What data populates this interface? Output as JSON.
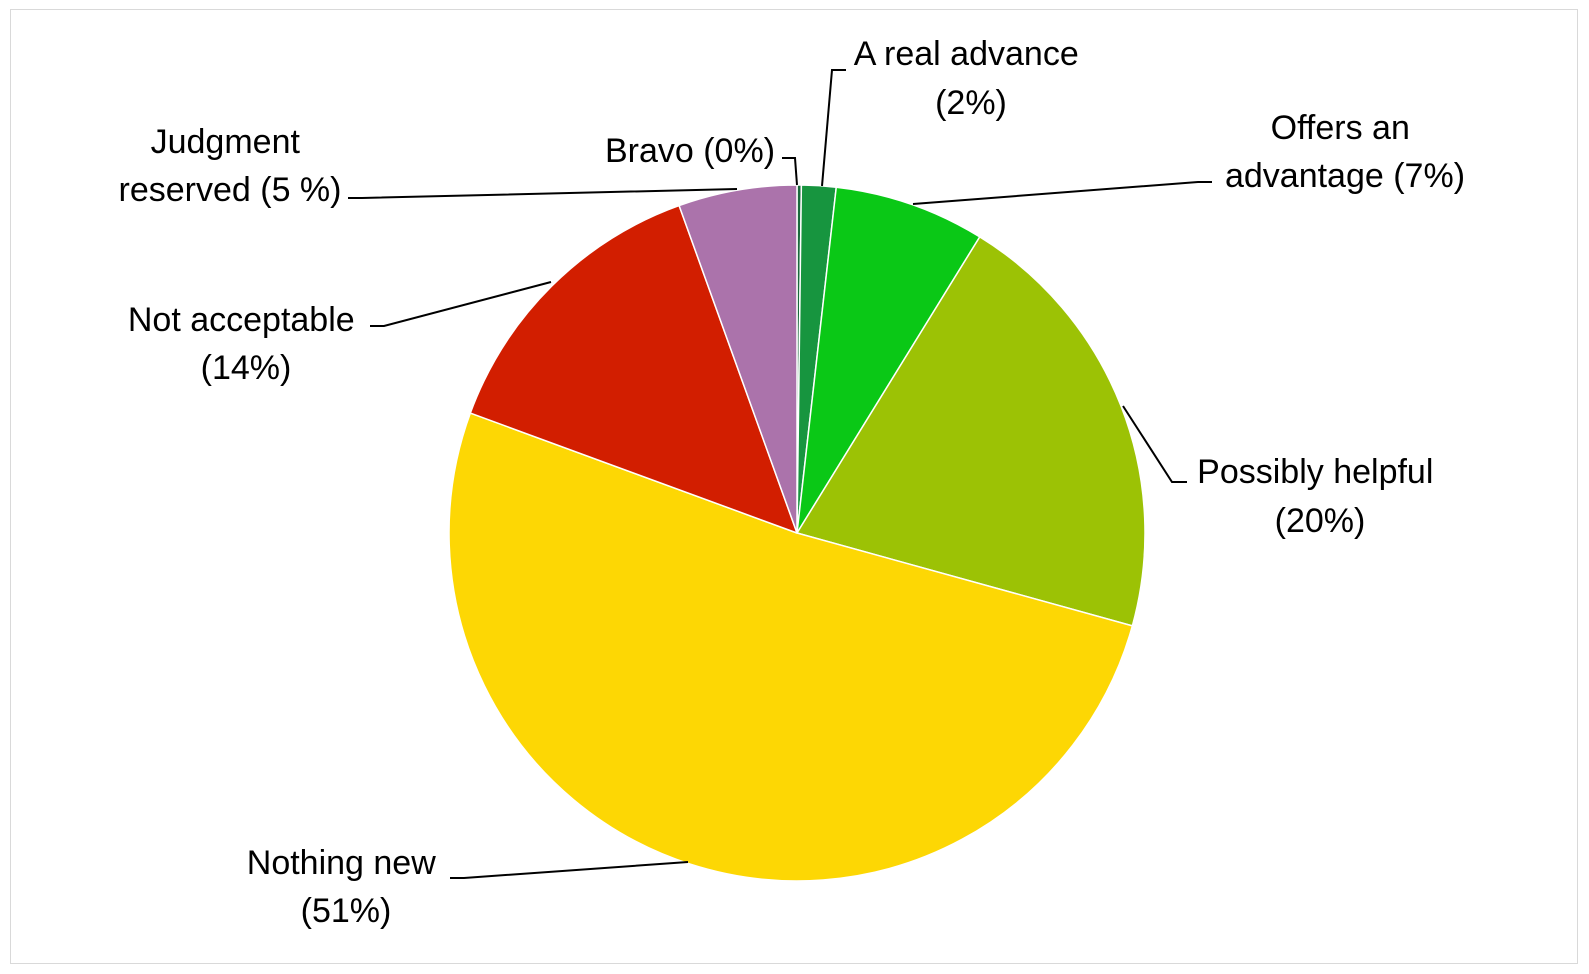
{
  "chart_data": {
    "type": "pie",
    "title": "",
    "slices": [
      {
        "label": "Bravo (0%)",
        "value": 0.2,
        "color": "#1a6a3c"
      },
      {
        "label": "A real advance (2%)",
        "value": 1.6,
        "color": "#17953f"
      },
      {
        "label": "Offers an advantage (7%)",
        "value": 7,
        "color": "#0ac816"
      },
      {
        "label": "Possibly helpful (20%)",
        "value": 20.5,
        "color": "#9cc205"
      },
      {
        "label": "Nothing new (51%)",
        "value": 51.3,
        "color": "#fdd704"
      },
      {
        "label": "Not acceptable (14%)",
        "value": 13.9,
        "color": "#d21e00"
      },
      {
        "label": "Judgment reserved (5 %)",
        "value": 5.5,
        "color": "#ab73ab"
      }
    ],
    "label_lines": {
      "bravo": [
        "Bravo (0%)"
      ],
      "real_advance": [
        "A real advance",
        "(2%)"
      ],
      "offers_advantage": [
        "Offers an",
        "advantage (7%)"
      ],
      "possibly_helpful": [
        "Possibly helpful",
        "(20%)"
      ],
      "nothing_new": [
        "Nothing new",
        "(51%)"
      ],
      "not_acceptable": [
        "Not acceptable",
        "(14%)"
      ],
      "judgment_reserved": [
        "Judgment",
        "reserved (5 %)"
      ]
    },
    "legend": "none",
    "grid": false
  }
}
